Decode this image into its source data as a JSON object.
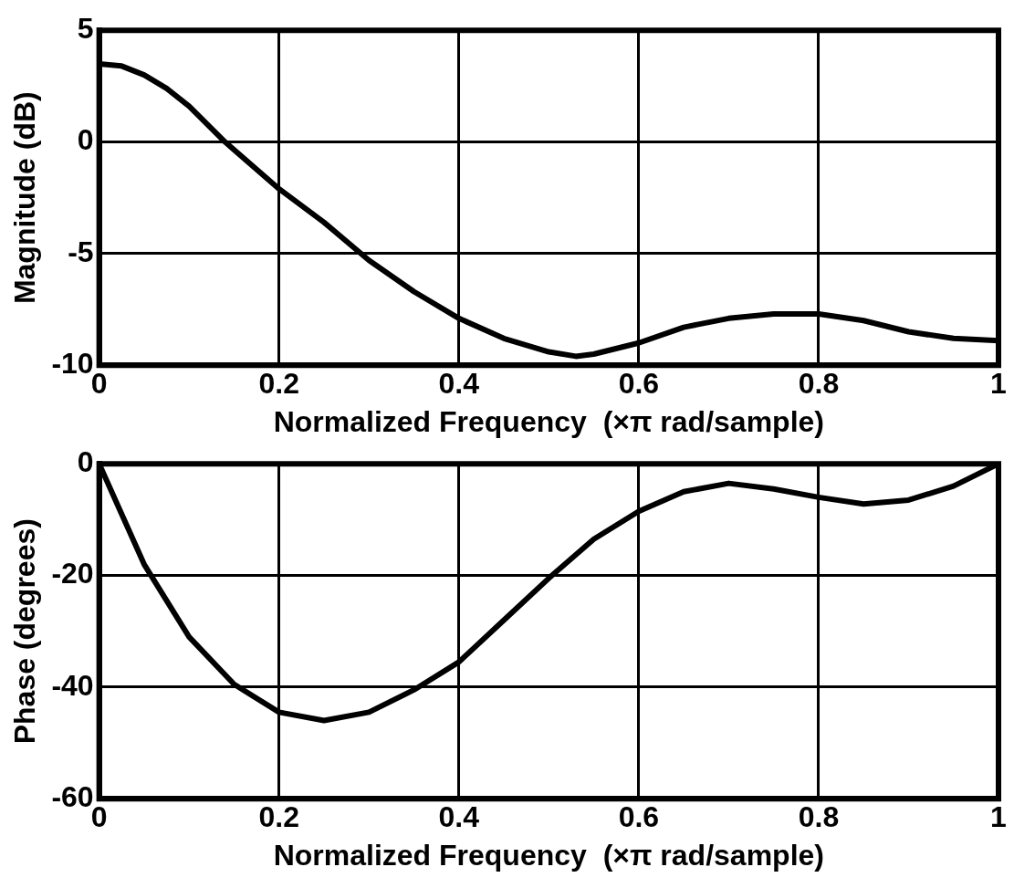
{
  "chart_data": [
    {
      "type": "line",
      "ylabel": "Magnitude (dB)",
      "xlabel": "Normalized Frequency  (×π rad/sample)",
      "xlim": [
        0,
        1
      ],
      "xticks": [
        0,
        0.2,
        0.4,
        0.6,
        0.8,
        1
      ],
      "ylim": [
        -10,
        5
      ],
      "yticks": [
        -10,
        -5,
        0,
        5
      ],
      "grid": true,
      "legend": false,
      "marker": "none",
      "line_style": "solid",
      "series": [
        {
          "color": "#000000",
          "x": [
            0,
            0.025,
            0.05,
            0.075,
            0.1,
            0.14,
            0.2,
            0.25,
            0.3,
            0.35,
            0.4,
            0.45,
            0.5,
            0.53,
            0.55,
            0.6,
            0.65,
            0.7,
            0.75,
            0.8,
            0.85,
            0.9,
            0.95,
            1
          ],
          "values": [
            3.5,
            3.4,
            3.0,
            2.4,
            1.6,
            0,
            -2.1,
            -3.6,
            -5.3,
            -6.7,
            -7.9,
            -8.8,
            -9.4,
            -9.6,
            -9.5,
            -9.0,
            -8.3,
            -7.9,
            -7.7,
            -7.7,
            -8.0,
            -8.5,
            -8.8,
            -8.9
          ]
        }
      ]
    },
    {
      "type": "line",
      "ylabel": "Phase (degrees)",
      "xlabel": "Normalized Frequency  (×π rad/sample)",
      "xlim": [
        0,
        1
      ],
      "xticks": [
        0,
        0.2,
        0.4,
        0.6,
        0.8,
        1
      ],
      "ylim": [
        -60,
        0
      ],
      "yticks": [
        -60,
        -40,
        -20,
        0
      ],
      "grid": true,
      "legend": false,
      "marker": "none",
      "line_style": "solid",
      "series": [
        {
          "color": "#000000",
          "x": [
            0,
            0.025,
            0.05,
            0.1,
            0.15,
            0.2,
            0.25,
            0.3,
            0.35,
            0.4,
            0.45,
            0.5,
            0.55,
            0.6,
            0.65,
            0.7,
            0.75,
            0.8,
            0.85,
            0.9,
            0.95,
            1
          ],
          "values": [
            0,
            -9,
            -18,
            -31,
            -39.5,
            -44.5,
            -46,
            -44.5,
            -40.5,
            -35.5,
            -28,
            -20.5,
            -13.5,
            -8.5,
            -5,
            -3.5,
            -4.5,
            -6,
            -7.2,
            -6.5,
            -4,
            0
          ]
        }
      ]
    }
  ]
}
